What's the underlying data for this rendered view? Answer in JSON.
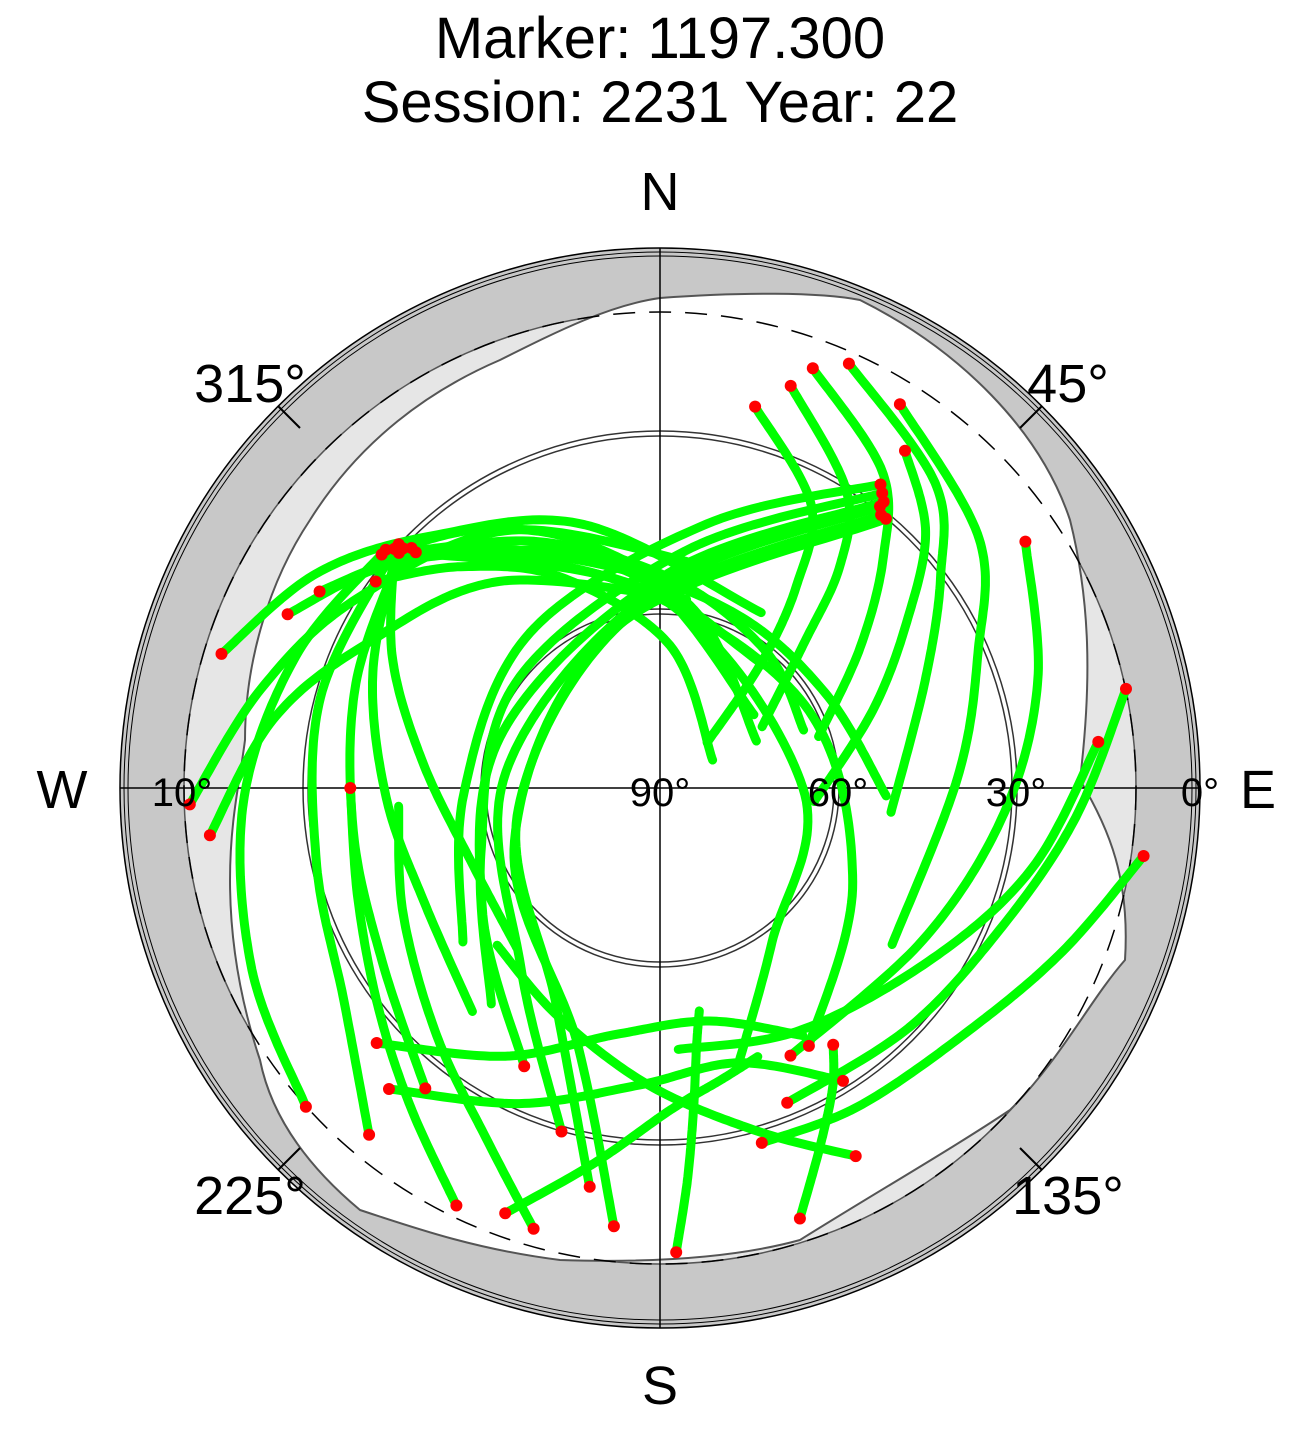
{
  "chart_data": {
    "type": "scatter",
    "subtype": "polar-skyplot",
    "title": "Marker: 1197.300",
    "subtitle": "Session: 2231 Year: 22",
    "directions": {
      "north": "N",
      "east": "E",
      "south": "S",
      "west": "W"
    },
    "azimuth_labels": [
      {
        "az": 315,
        "text": "315°"
      },
      {
        "az": 45,
        "text": "45°"
      },
      {
        "az": 225,
        "text": "225°"
      },
      {
        "az": 135,
        "text": "135°"
      }
    ],
    "elevation_labels": [
      {
        "el": 10,
        "side": "west",
        "text": "10°"
      },
      {
        "el": 90,
        "side": "east",
        "text": "90°"
      },
      {
        "el": 60,
        "side": "east",
        "text": "60°"
      },
      {
        "el": 30,
        "side": "east",
        "text": "30°"
      },
      {
        "el": 0,
        "side": "east",
        "text": "0°"
      }
    ],
    "elevation_circles": [
      60,
      30
    ],
    "elevation_cutoff_dashed": 10,
    "elevation_range": [
      0,
      90
    ],
    "azimuth_range": [
      0,
      360
    ],
    "colors": {
      "outer_band": "#c8c8c8",
      "horizon_mask": "#e6e6e6",
      "tracks": "#00ff00",
      "track_ends": "#ff0000"
    },
    "series": [
      {
        "name": "",
        "color": "#00ff00",
        "points": [
          [
            14,
            24
          ],
          [
            28,
            36
          ],
          [
            34,
            49
          ],
          [
            39,
            63
          ],
          [
            46,
            79
          ]
        ]
      },
      {
        "name": "",
        "color": "#00ff00",
        "points": [
          [
            18,
            19
          ],
          [
            32,
            31
          ],
          [
            39,
            42
          ],
          [
            45,
            56
          ],
          [
            59,
            70
          ]
        ]
      },
      {
        "name": "",
        "color": "#00ff00",
        "points": [
          [
            20,
            15
          ],
          [
            35,
            25
          ],
          [
            44,
            36
          ],
          [
            55,
            49
          ],
          [
            72,
            62
          ]
        ]
      },
      {
        "name": "",
        "color": "#00ff00",
        "points": [
          [
            24,
            12
          ],
          [
            42,
            21
          ],
          [
            53,
            31
          ],
          [
            68,
            42
          ],
          [
            96,
            51
          ]
        ]
      },
      {
        "name": "",
        "color": "#00ff00",
        "points": [
          [
            32,
            14
          ],
          [
            52,
            22
          ],
          [
            67,
            32
          ],
          [
            88,
            40
          ],
          [
            124,
            43
          ]
        ]
      },
      {
        "name": "",
        "color": "#00ff00",
        "points": [
          [
            56,
            16
          ],
          [
            74,
            24
          ],
          [
            94,
            32
          ],
          [
            120,
            39
          ],
          [
            154,
            40
          ]
        ]
      },
      {
        "name": "",
        "color": "#00ff00",
        "points": [
          [
            36,
            20
          ],
          [
            46,
            28
          ],
          [
            56,
            40
          ],
          [
            70,
            52
          ],
          [
            95,
            64
          ]
        ]
      },
      {
        "name": "",
        "color": "#00ff00",
        "points": [
          [
            78,
            10
          ],
          [
            94,
            20
          ],
          [
            112,
            28
          ],
          [
            134,
            32
          ],
          [
            158,
            33
          ]
        ]
      },
      {
        "name": "",
        "color": "#00ff00",
        "points": [
          [
            98,
            8
          ],
          [
            112,
            17
          ],
          [
            128,
            24
          ],
          [
            148,
            27
          ],
          [
            164,
            28
          ]
        ]
      },
      {
        "name": "",
        "color": "#00ff00",
        "points": [
          [
            84,
            16
          ],
          [
            102,
            26
          ],
          [
            122,
            36
          ],
          [
            150,
            43
          ],
          [
            176,
            46
          ]
        ]
      },
      {
        "name": "",
        "color": "#00ff00",
        "points": [
          [
            306,
            31
          ],
          [
            318,
            40
          ],
          [
            335,
            51
          ],
          [
            4,
            66
          ],
          [
            62,
            80
          ]
        ]
      },
      {
        "name": "",
        "color": "#00ff00",
        "points": [
          [
            310,
            29
          ],
          [
            325,
            37
          ],
          [
            343,
            47
          ],
          [
            12,
            60
          ],
          [
            64,
            72
          ]
        ]
      },
      {
        "name": "",
        "color": "#00ff00",
        "points": [
          [
            300,
            24
          ],
          [
            313,
            33
          ],
          [
            330,
            44
          ],
          [
            358,
            56
          ],
          [
            52,
            70
          ]
        ]
      },
      {
        "name": "",
        "color": "#00ff00",
        "points": [
          [
            295,
            21
          ],
          [
            308,
            30
          ],
          [
            322,
            40
          ],
          [
            348,
            51
          ],
          [
            40,
            63
          ]
        ]
      },
      {
        "name": "",
        "color": "#00ff00",
        "points": [
          [
            287,
            13
          ],
          [
            302,
            22
          ],
          [
            318,
            33
          ],
          [
            344,
            44
          ],
          [
            30,
            56
          ]
        ]
      },
      {
        "name": "",
        "color": "#00ff00",
        "points": [
          [
            268,
            11
          ],
          [
            284,
            21
          ],
          [
            302,
            30
          ],
          [
            330,
            40
          ],
          [
            14,
            52
          ]
        ]
      },
      {
        "name": "",
        "color": "#00ff00",
        "points": [
          [
            264,
            14
          ],
          [
            280,
            24
          ],
          [
            296,
            35
          ],
          [
            322,
            46
          ],
          [
            8,
            58
          ]
        ]
      },
      {
        "name": "",
        "color": "#00ff00",
        "points": [
          [
            312,
            30
          ],
          [
            296,
            40
          ],
          [
            276,
            50
          ],
          [
            248,
            56
          ],
          [
            222,
            54
          ]
        ]
      },
      {
        "name": "",
        "color": "#00ff00",
        "points": [
          [
            313,
            30
          ],
          [
            292,
            38
          ],
          [
            268,
            44
          ],
          [
            244,
            46
          ],
          [
            220,
            41
          ]
        ]
      },
      {
        "name": "",
        "color": "#00ff00",
        "points": [
          [
            313,
            31
          ],
          [
            289,
            36
          ],
          [
            262,
            38
          ],
          [
            238,
            35
          ],
          [
            218,
            26
          ]
        ]
      },
      {
        "name": "",
        "color": "#00ff00",
        "points": [
          [
            312,
            30
          ],
          [
            285,
            31
          ],
          [
            258,
            31
          ],
          [
            236,
            26
          ],
          [
            220,
            14
          ]
        ]
      },
      {
        "name": "",
        "color": "#00ff00",
        "points": [
          [
            311,
            29
          ],
          [
            290,
            25
          ],
          [
            268,
            20
          ],
          [
            246,
            15
          ],
          [
            228,
            10
          ]
        ]
      },
      {
        "name": "",
        "color": "#00ff00",
        "points": [
          [
            312,
            31
          ],
          [
            334,
            44
          ],
          [
            4,
            55
          ],
          [
            38,
            61
          ],
          [
            68,
            64
          ]
        ]
      },
      {
        "name": "",
        "color": "#00ff00",
        "points": [
          [
            313,
            31
          ],
          [
            342,
            50
          ],
          [
            22,
            58
          ],
          [
            60,
            58
          ],
          [
            92,
            52
          ]
        ]
      },
      {
        "name": "",
        "color": "#00ff00",
        "points": [
          [
            314,
            32
          ],
          [
            350,
            55
          ],
          [
            60,
            62
          ],
          [
            116,
            54
          ],
          [
            150,
            40
          ]
        ]
      },
      {
        "name": "",
        "color": "#00ff00",
        "points": [
          [
            314,
            33
          ],
          [
            0,
            58
          ],
          [
            90,
            66
          ],
          [
            144,
            58
          ],
          [
            164,
            42
          ]
        ]
      },
      {
        "name": "",
        "color": "#00ff00",
        "points": [
          [
            36,
            27
          ],
          [
            10,
            45
          ],
          [
            320,
            56
          ],
          [
            268,
            57
          ],
          [
            232,
            48
          ]
        ]
      },
      {
        "name": "",
        "color": "#00ff00",
        "points": [
          [
            37,
            28
          ],
          [
            6,
            50
          ],
          [
            306,
            60
          ],
          [
            250,
            58
          ],
          [
            218,
            44
          ]
        ]
      },
      {
        "name": "",
        "color": "#00ff00",
        "points": [
          [
            38,
            29
          ],
          [
            2,
            54
          ],
          [
            290,
            62
          ],
          [
            236,
            54
          ],
          [
            206,
            38
          ]
        ]
      },
      {
        "name": "",
        "color": "#00ff00",
        "points": [
          [
            38,
            30
          ],
          [
            358,
            57
          ],
          [
            276,
            64
          ],
          [
            218,
            52
          ],
          [
            196,
            30
          ]
        ]
      },
      {
        "name": "",
        "color": "#00ff00",
        "points": [
          [
            39,
            31
          ],
          [
            352,
            60
          ],
          [
            262,
            66
          ],
          [
            206,
            50
          ],
          [
            190,
            22
          ]
        ]
      },
      {
        "name": "",
        "color": "#00ff00",
        "points": [
          [
            40,
            31
          ],
          [
            345,
            62
          ],
          [
            250,
            64
          ],
          [
            198,
            45
          ],
          [
            186,
            16
          ]
        ]
      },
      {
        "name": "",
        "color": "#00ff00",
        "points": [
          [
            228,
            26
          ],
          [
            210,
            38
          ],
          [
            190,
            48
          ],
          [
            168,
            50
          ],
          [
            150,
            42
          ]
        ]
      },
      {
        "name": "",
        "color": "#00ff00",
        "points": [
          [
            222,
            22
          ],
          [
            204,
            32
          ],
          [
            184,
            40
          ],
          [
            164,
            42
          ],
          [
            148,
            32
          ]
        ]
      },
      {
        "name": "",
        "color": "#00ff00",
        "points": [
          [
            200,
            14
          ],
          [
            190,
            26
          ],
          [
            178,
            36
          ],
          [
            168,
            40
          ],
          [
            160,
            42
          ]
        ]
      },
      {
        "name": "",
        "color": "#00ff00",
        "points": [
          [
            178,
            12
          ],
          [
            176,
            24
          ],
          [
            174,
            36
          ],
          [
            172,
            46
          ],
          [
            170,
            52
          ]
        ]
      },
      {
        "name": "",
        "color": "#00ff00",
        "points": [
          [
            162,
            14
          ],
          [
            156,
            24
          ],
          [
            150,
            32
          ],
          [
            146,
            38
          ]
        ]
      },
      {
        "name": "",
        "color": "#00ff00",
        "points": [
          [
            206,
            12
          ],
          [
            218,
            22
          ],
          [
            232,
            30
          ],
          [
            250,
            36
          ],
          [
            270,
            38
          ]
        ]
      },
      {
        "name": "",
        "color": "#00ff00",
        "points": [
          [
            196,
            13
          ],
          [
            206,
            24
          ],
          [
            222,
            34
          ],
          [
            244,
            42
          ],
          [
            266,
            46
          ]
        ]
      },
      {
        "name": "",
        "color": "#00ff00",
        "points": [
          [
            152,
            20
          ],
          [
            164,
            30
          ],
          [
            182,
            40
          ],
          [
            204,
            48
          ],
          [
            226,
            52
          ]
        ]
      }
    ]
  }
}
